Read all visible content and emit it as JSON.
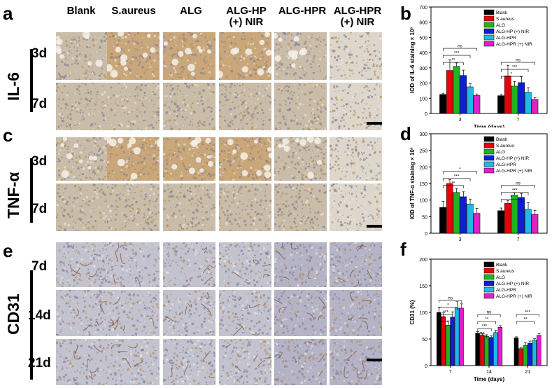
{
  "panels": {
    "a": "a",
    "b": "b",
    "c": "c",
    "d": "d",
    "e": "e",
    "f": "f"
  },
  "column_headers": [
    {
      "line1": "Blank",
      "line2": ""
    },
    {
      "line1": "S.aureus",
      "line2": ""
    },
    {
      "line1": "ALG",
      "line2": ""
    },
    {
      "line1": "ALG-HP",
      "line2": "(+) NIR"
    },
    {
      "line1": "ALG-HPR",
      "line2": ""
    },
    {
      "line1": "ALG-HPR",
      "line2": "(+) NIR"
    }
  ],
  "stain_groups": [
    {
      "label": "IL-6",
      "rows": [
        "3d",
        "7d"
      ]
    },
    {
      "label": "TNF-α",
      "rows": [
        "3d",
        "7d"
      ]
    },
    {
      "label": "CD31",
      "rows": [
        "7d",
        "14d",
        "21d"
      ]
    }
  ],
  "colors": {
    "Blank": "#000000",
    "S.aureus": "#e8000b",
    "ALG": "#1fb51f",
    "ALG-HP (+) NIR": "#0a1fd6",
    "ALG-HPR": "#22b8e6",
    "ALG-HPR (+) NIR": "#e020c8",
    "stain_brown": "#b08a58",
    "stain_blue": "#b7b8cc",
    "stain_light": "#e2dccc"
  },
  "chart_data": [
    {
      "panel": "b",
      "type": "bar",
      "ylabel": "IOD of IL-6 staining × 10³",
      "xlabel": "Time (days)",
      "ylim": [
        0,
        700
      ],
      "yticks": [
        0,
        100,
        200,
        300,
        400,
        500,
        600,
        700
      ],
      "categories": [
        "3",
        "7"
      ],
      "legend": [
        "Blank",
        "S.aureus",
        "ALG",
        "ALG-HP (+) NIR",
        "ALG-HPR",
        "ALG-HPR (+) NIR"
      ],
      "legend_position": "top-right",
      "series": [
        {
          "name": "Blank",
          "values": [
            125,
            117
          ],
          "err": [
            8,
            8
          ]
        },
        {
          "name": "S.aureus",
          "values": [
            283,
            247
          ],
          "err": [
            70,
            70
          ]
        },
        {
          "name": "ALG",
          "values": [
            310,
            180
          ],
          "err": [
            22,
            30
          ]
        },
        {
          "name": "ALG-HP (+) NIR",
          "values": [
            250,
            203
          ],
          "err": [
            35,
            38
          ]
        },
        {
          "name": "ALG-HPR",
          "values": [
            175,
            140
          ],
          "err": [
            22,
            30
          ]
        },
        {
          "name": "ALG-HPR (+) NIR",
          "values": [
            118,
            93
          ],
          "err": [
            10,
            12
          ]
        }
      ],
      "annotations": [
        "ns",
        "***",
        "**",
        "ns",
        "***",
        "*"
      ]
    },
    {
      "panel": "d",
      "type": "bar",
      "ylabel": "IOD of TNF-α staining × 10³",
      "xlabel": "",
      "ylim": [
        0,
        300
      ],
      "yticks": [
        0,
        50,
        100,
        150,
        200,
        250,
        300
      ],
      "categories": [
        "3",
        "7"
      ],
      "legend": [
        "Blank",
        "S.aureus",
        "ALG",
        "ALG-HP (+) NIR",
        "ALG-HPR",
        "ALG-HPR (+) NIR"
      ],
      "legend_position": "top-right",
      "series": [
        {
          "name": "Blank",
          "values": [
            78,
            68
          ],
          "err": [
            18,
            8
          ]
        },
        {
          "name": "S.aureus",
          "values": [
            150,
            90
          ],
          "err": [
            12,
            8
          ]
        },
        {
          "name": "ALG",
          "values": [
            123,
            115
          ],
          "err": [
            12,
            8
          ]
        },
        {
          "name": "ALG-HP (+) NIR",
          "values": [
            110,
            108
          ],
          "err": [
            15,
            12
          ]
        },
        {
          "name": "ALG-HPR",
          "values": [
            88,
            72
          ],
          "err": [
            15,
            20
          ]
        },
        {
          "name": "ALG-HPR (+) NIR",
          "values": [
            60,
            57
          ],
          "err": [
            15,
            12
          ]
        }
      ],
      "annotations": [
        "*",
        "***",
        "**",
        "ns",
        "***",
        "*"
      ]
    },
    {
      "panel": "f",
      "type": "bar",
      "ylabel": "CD31 (%)",
      "xlabel": "Time (days)",
      "ylim": [
        0,
        200
      ],
      "yticks": [
        0,
        50,
        100,
        150,
        200
      ],
      "categories": [
        "7",
        "14",
        "21"
      ],
      "legend": [
        "Blank",
        "S.aureus",
        "ALG",
        "ALG-HP (+) NIR",
        "ALG-HPR",
        "ALG-HPR (+) NIR"
      ],
      "legend_position": "top-right",
      "series": [
        {
          "name": "Blank",
          "values": [
            100,
            61,
            52
          ],
          "err": [
            10,
            3,
            2
          ]
        },
        {
          "name": "S.aureus",
          "values": [
            92,
            57,
            32
          ],
          "err": [
            8,
            3,
            2
          ]
        },
        {
          "name": "ALG",
          "values": [
            76,
            55,
            38
          ],
          "err": [
            8,
            3,
            5
          ]
        },
        {
          "name": "ALG-HP (+) NIR",
          "values": [
            91,
            53,
            42
          ],
          "err": [
            10,
            3,
            4
          ]
        },
        {
          "name": "ALG-HPR",
          "values": [
            108,
            62,
            48
          ],
          "err": [
            12,
            4,
            3
          ]
        },
        {
          "name": "ALG-HPR (+) NIR",
          "values": [
            108,
            72,
            57
          ],
          "err": [
            8,
            3,
            3
          ]
        }
      ],
      "annotations": [
        "ns",
        "*",
        "***",
        "*",
        "ns",
        "**",
        "***",
        "ns",
        "***",
        "**"
      ]
    }
  ]
}
